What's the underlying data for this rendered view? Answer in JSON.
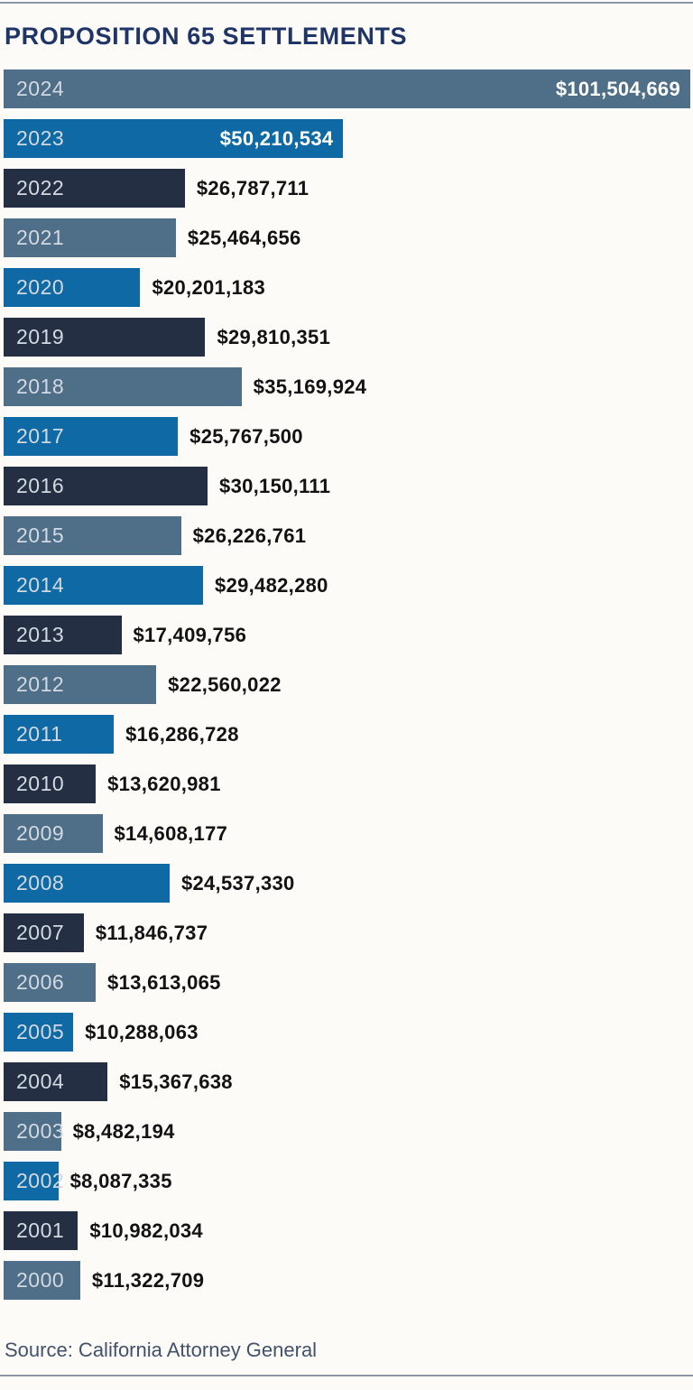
{
  "chart_data": {
    "type": "bar",
    "orientation": "horizontal",
    "title": "PROPOSITION 65 SETTLEMENTS",
    "source": "Source: California Attorney General",
    "unit": "USD",
    "value_label_format": "$#,###",
    "axis": "none (value labels shown directly on/next to bars)",
    "grid": false,
    "legend": false,
    "xlim": [
      0,
      101504669
    ],
    "bar_color_cycle": [
      "steel",
      "blue",
      "navy"
    ],
    "colors": {
      "steel": "#4f6e88",
      "blue": "#0e69a5",
      "navy": "#242f44",
      "title_text": "#1f3567",
      "year_text": "#d2d9e0",
      "value_text_outside": "#121212",
      "value_text_inside": "#ffffff",
      "source_text": "#42526b",
      "rule": "#8d97a6",
      "background": "#fcfbf8"
    },
    "categories": [
      "2024",
      "2023",
      "2022",
      "2021",
      "2020",
      "2019",
      "2018",
      "2017",
      "2016",
      "2015",
      "2014",
      "2013",
      "2012",
      "2011",
      "2010",
      "2009",
      "2008",
      "2007",
      "2006",
      "2005",
      "2004",
      "2003",
      "2002",
      "2001",
      "2000"
    ],
    "values": [
      101504669,
      50210534,
      26787711,
      25464656,
      20201183,
      29810351,
      35169924,
      25767500,
      30150111,
      26226761,
      29482280,
      17409756,
      22560022,
      16286728,
      13620981,
      14608177,
      24537330,
      11846737,
      13613065,
      10288063,
      15367638,
      8482194,
      8087335,
      10982034,
      11322709
    ],
    "rows": [
      {
        "year": "2024",
        "value": 101504669,
        "label": "$101,504,669",
        "color": "steel",
        "label_inside": true
      },
      {
        "year": "2023",
        "value": 50210534,
        "label": "$50,210,534",
        "color": "blue",
        "label_inside": true
      },
      {
        "year": "2022",
        "value": 26787711,
        "label": "$26,787,711",
        "color": "navy",
        "label_inside": false
      },
      {
        "year": "2021",
        "value": 25464656,
        "label": "$25,464,656",
        "color": "steel",
        "label_inside": false
      },
      {
        "year": "2020",
        "value": 20201183,
        "label": "$20,201,183",
        "color": "blue",
        "label_inside": false
      },
      {
        "year": "2019",
        "value": 29810351,
        "label": "$29,810,351",
        "color": "navy",
        "label_inside": false
      },
      {
        "year": "2018",
        "value": 35169924,
        "label": "$35,169,924",
        "color": "steel",
        "label_inside": false
      },
      {
        "year": "2017",
        "value": 25767500,
        "label": "$25,767,500",
        "color": "blue",
        "label_inside": false
      },
      {
        "year": "2016",
        "value": 30150111,
        "label": "$30,150,111",
        "color": "navy",
        "label_inside": false
      },
      {
        "year": "2015",
        "value": 26226761,
        "label": "$26,226,761",
        "color": "steel",
        "label_inside": false
      },
      {
        "year": "2014",
        "value": 29482280,
        "label": "$29,482,280",
        "color": "blue",
        "label_inside": false
      },
      {
        "year": "2013",
        "value": 17409756,
        "label": "$17,409,756",
        "color": "navy",
        "label_inside": false
      },
      {
        "year": "2012",
        "value": 22560022,
        "label": "$22,560,022",
        "color": "steel",
        "label_inside": false
      },
      {
        "year": "2011",
        "value": 16286728,
        "label": "$16,286,728",
        "color": "blue",
        "label_inside": false
      },
      {
        "year": "2010",
        "value": 13620981,
        "label": "$13,620,981",
        "color": "navy",
        "label_inside": false
      },
      {
        "year": "2009",
        "value": 14608177,
        "label": "$14,608,177",
        "color": "steel",
        "label_inside": false
      },
      {
        "year": "2008",
        "value": 24537330,
        "label": "$24,537,330",
        "color": "blue",
        "label_inside": false
      },
      {
        "year": "2007",
        "value": 11846737,
        "label": "$11,846,737",
        "color": "navy",
        "label_inside": false
      },
      {
        "year": "2006",
        "value": 13613065,
        "label": "$13,613,065",
        "color": "steel",
        "label_inside": false
      },
      {
        "year": "2005",
        "value": 10288063,
        "label": "$10,288,063",
        "color": "blue",
        "label_inside": false
      },
      {
        "year": "2004",
        "value": 15367638,
        "label": "$15,367,638",
        "color": "navy",
        "label_inside": false
      },
      {
        "year": "2003",
        "value": 8482194,
        "label": "$8,482,194",
        "color": "steel",
        "label_inside": false
      },
      {
        "year": "2002",
        "value": 8087335,
        "label": "$8,087,335",
        "color": "blue",
        "label_inside": false
      },
      {
        "year": "2001",
        "value": 10982034,
        "label": "$10,982,034",
        "color": "navy",
        "label_inside": false
      },
      {
        "year": "2000",
        "value": 11322709,
        "label": "$11,322,709",
        "color": "steel",
        "label_inside": false
      }
    ]
  }
}
